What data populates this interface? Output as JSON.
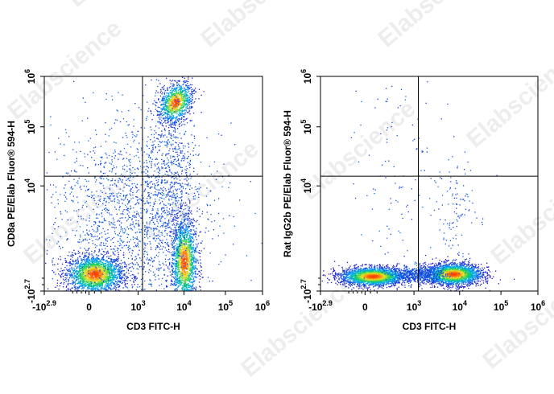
{
  "watermark": "Elabscience",
  "color_scale": [
    "#1f10c8",
    "#00a6ff",
    "#10d060",
    "#f0e020",
    "#ff3b00"
  ],
  "chart_data": [
    {
      "type": "scatter",
      "style": "density dot plot (blue-to-red pseudocolor)",
      "xlabel": "CD3 FITC-H",
      "ylabel": "CD8a PE/Elab Fluor® 594-H",
      "x_ticks": [
        {
          "base": "-10",
          "sup": "2.9"
        },
        {
          "base": "0",
          "sup": ""
        },
        {
          "base": "10",
          "sup": "3"
        },
        {
          "base": "10",
          "sup": "4"
        },
        {
          "base": "10",
          "sup": "5"
        },
        {
          "base": "10",
          "sup": "6"
        }
      ],
      "y_ticks": [
        {
          "base": "-10",
          "sup": "2.7"
        },
        {
          "base": "10",
          "sup": "4"
        },
        {
          "base": "10",
          "sup": "5"
        },
        {
          "base": "10",
          "sup": "6"
        }
      ],
      "scale": "biexponential",
      "xlim": [
        "-10^2.9",
        "10^6"
      ],
      "ylim": [
        "-10^2.7",
        "10^6"
      ],
      "quadrant_gate": {
        "x": 1300,
        "y": 18000
      },
      "populations": [
        {
          "name_hidden": true,
          "x_center": 250,
          "y_center": 0,
          "relative_density": 1.0
        },
        {
          "name_hidden": true,
          "x_center": 8000,
          "y_center": 50,
          "relative_density": 0.9
        },
        {
          "name_hidden": true,
          "x_center": 7000,
          "y_center": 300000,
          "relative_density": 0.8
        }
      ]
    },
    {
      "type": "scatter",
      "style": "density dot plot (blue-to-red pseudocolor)",
      "xlabel": "CD3 FITC-H",
      "ylabel": "Rat IgG2b PE/Elab Fluor® 594-H",
      "x_ticks": [
        {
          "base": "-10",
          "sup": "2.9"
        },
        {
          "base": "0",
          "sup": ""
        },
        {
          "base": "10",
          "sup": "3"
        },
        {
          "base": "10",
          "sup": "4"
        },
        {
          "base": "10",
          "sup": "5"
        },
        {
          "base": "10",
          "sup": "6"
        }
      ],
      "y_ticks": [
        {
          "base": "-10",
          "sup": "2.7"
        },
        {
          "base": "10",
          "sup": "4"
        },
        {
          "base": "10",
          "sup": "5"
        },
        {
          "base": "10",
          "sup": "6"
        }
      ],
      "scale": "biexponential",
      "xlim": [
        "-10^2.9",
        "10^6"
      ],
      "ylim": [
        "-10^2.7",
        "10^6"
      ],
      "quadrant_gate": {
        "x": 1300,
        "y": 18000
      },
      "populations": [
        {
          "name_hidden": true,
          "x_center": 250,
          "y_center": 0,
          "relative_density": 1.0
        },
        {
          "name_hidden": true,
          "x_center": 6000,
          "y_center": 0,
          "relative_density": 1.0
        }
      ]
    }
  ]
}
